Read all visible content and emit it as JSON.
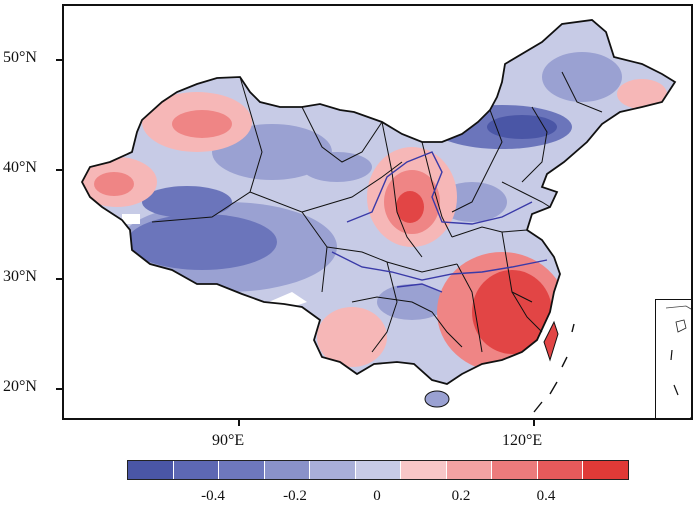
{
  "map": {
    "lat_labels": [
      "50°N",
      "40°N",
      "30°N",
      "20°N"
    ],
    "lon_labels": [
      "90°E",
      "120°E"
    ],
    "colors": {
      "land_low": "#c7cbe6",
      "neg_strong": "#4a56a6",
      "neg_mid": "#6b75bb",
      "neg_light": "#9aa1d2",
      "pos_light": "#f6b7b7",
      "pos_mid": "#ef8585",
      "pos_strong": "#e24545",
      "rivers": "#3a3aa8",
      "borders": "#111111",
      "masked": "#ffffff"
    }
  },
  "colorbar": {
    "colors": [
      "#4a56a6",
      "#5d68b3",
      "#6e78bd",
      "#8a92c9",
      "#a9afd8",
      "#c8cbe6",
      "#f8c7c8",
      "#f3a2a3",
      "#ec7b7c",
      "#e65a5b",
      "#e03a37"
    ],
    "tick_labels": [
      "-0.4",
      "-0.2",
      "0",
      "0.2",
      "0.4"
    ]
  }
}
